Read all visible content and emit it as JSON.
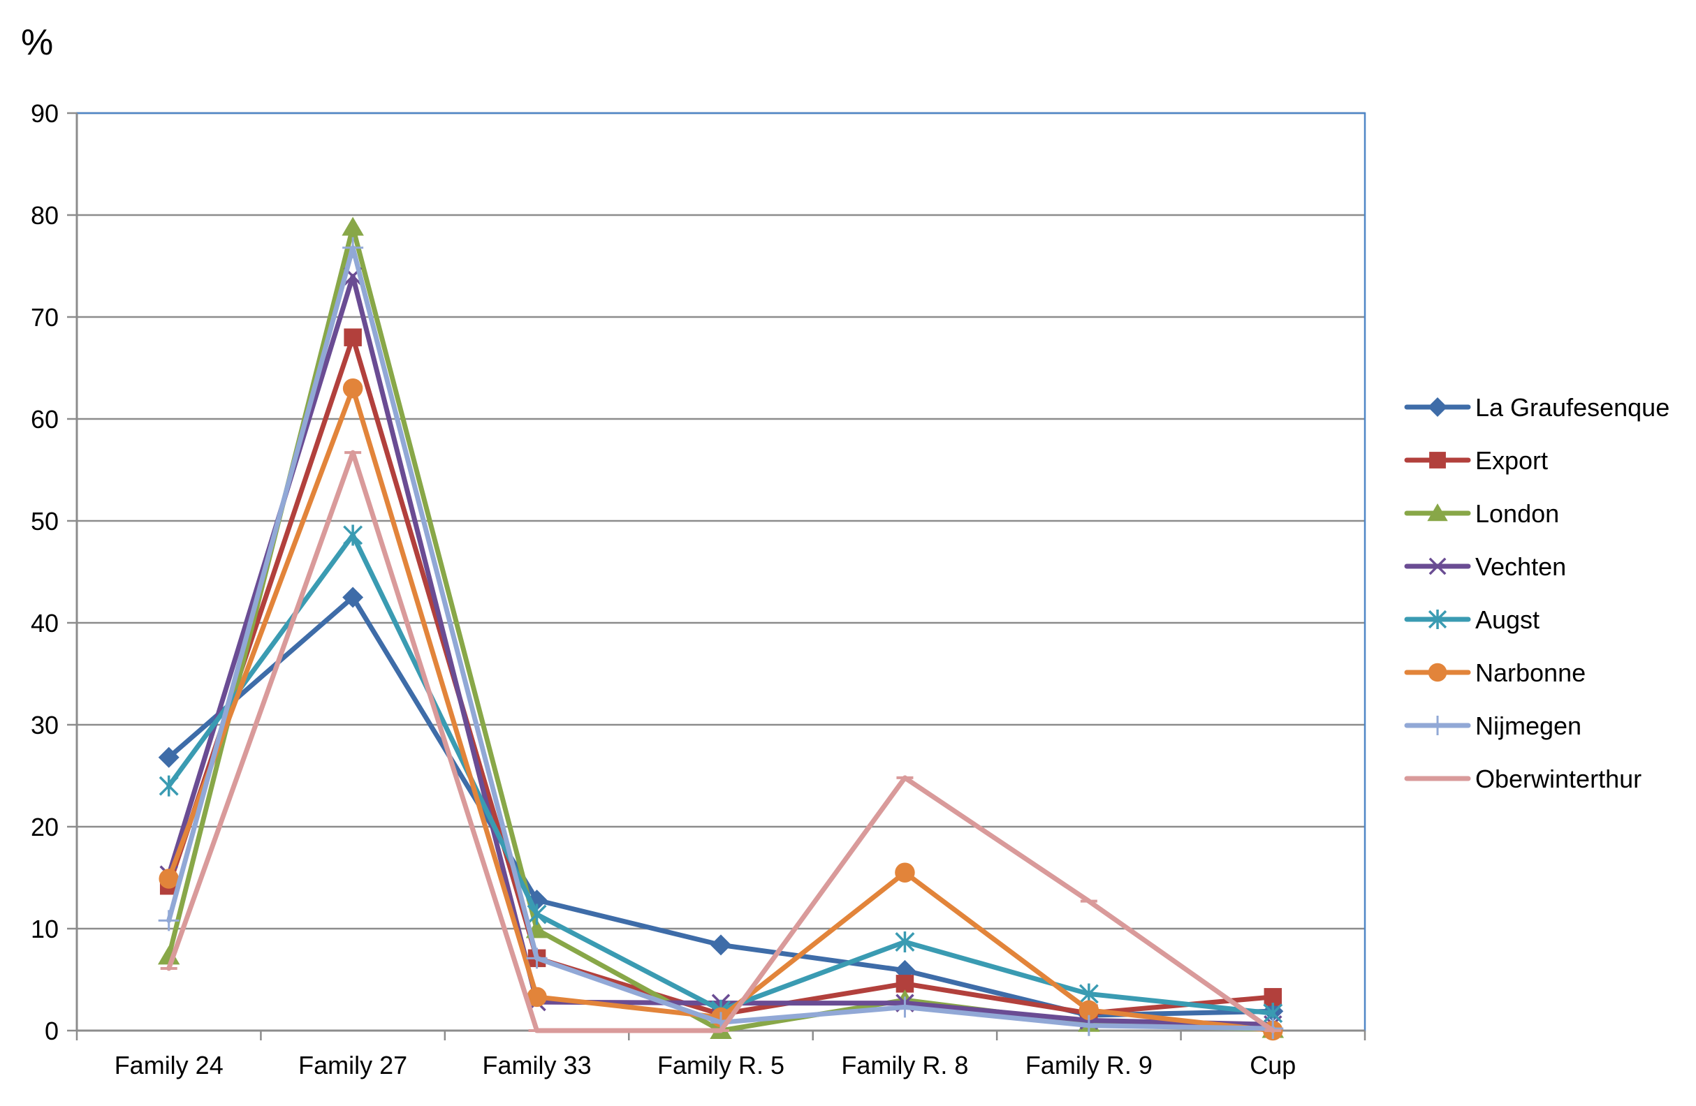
{
  "chart_data": {
    "type": "line",
    "title": "",
    "xlabel": "",
    "ylabel": "%",
    "ylim": [
      0,
      90
    ],
    "yticks": [
      0,
      10,
      20,
      30,
      40,
      50,
      60,
      70,
      80,
      90
    ],
    "grid": true,
    "legend": "right",
    "categories": [
      "Family 24",
      "Family 27",
      "Family 33",
      "Family R. 5",
      "Family R. 8",
      "Family R. 9",
      "Cup"
    ],
    "series": [
      {
        "name": "La Graufesenque",
        "color": "#3E6CA8",
        "marker": "diamond",
        "values": [
          26.8,
          42.5,
          12.8,
          8.4,
          5.9,
          1.5,
          1.9
        ]
      },
      {
        "name": "Export",
        "color": "#B2403C",
        "marker": "square",
        "values": [
          14.2,
          68.0,
          7.1,
          1.6,
          4.6,
          1.7,
          3.3
        ]
      },
      {
        "name": "London",
        "color": "#88A748",
        "marker": "triangle",
        "values": [
          7.3,
          78.8,
          9.9,
          0.0,
          3.0,
          0.7,
          0.1
        ]
      },
      {
        "name": "Vechten",
        "color": "#6A4C93",
        "marker": "x",
        "values": [
          15.3,
          74.0,
          2.8,
          2.7,
          2.7,
          1.0,
          0.6
        ]
      },
      {
        "name": "Augst",
        "color": "#3A9BB2",
        "marker": "star",
        "values": [
          24.0,
          48.6,
          11.4,
          2.0,
          8.7,
          3.6,
          1.7
        ]
      },
      {
        "name": "Narbonne",
        "color": "#E2843A",
        "marker": "circle",
        "values": [
          14.9,
          63.0,
          3.3,
          1.3,
          15.5,
          2.0,
          0.0
        ]
      },
      {
        "name": "Nijmegen",
        "color": "#91A8D6",
        "marker": "plus",
        "values": [
          10.8,
          76.8,
          7.1,
          0.8,
          2.3,
          0.5,
          0.2
        ]
      },
      {
        "name": "Oberwinterthur",
        "color": "#D99A9A",
        "marker": "dash",
        "values": [
          6.1,
          56.7,
          0.0,
          0.0,
          24.8,
          12.7,
          0.0
        ]
      }
    ]
  }
}
